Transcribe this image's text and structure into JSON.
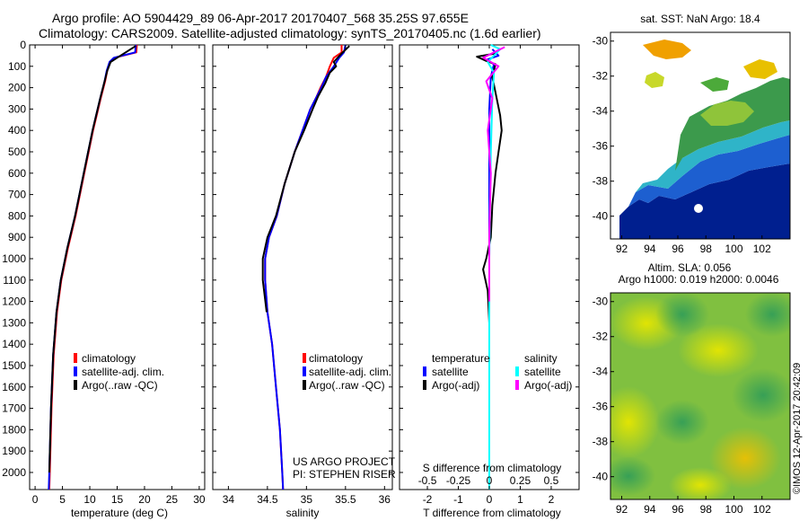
{
  "header": {
    "title_line1": "Argo profile: AO 5904429_89 06-Apr-2017 20170407_568 35.25S 97.655E",
    "title_line2": "Climatology: CARS2009. Satellite-adjusted climatology: synTS_20170405.nc (1.6d earlier)"
  },
  "project": {
    "line1": "US ARGO PROJECT",
    "line2": "PI: STEPHEN RISER"
  },
  "sst_map": {
    "title": "sat. SST: NaN Argo: 18.4"
  },
  "sla_map": {
    "line1": "Altim. SLA: 0.056",
    "line2": "Argo h1000: 0.019 h2000: 0.0046"
  },
  "watermark": "©IMOS 12-Apr-2017 20:42:09",
  "colors": {
    "climatology": "#ff0000",
    "satellite": "#0000ff",
    "argo": "#000000",
    "salinity_satellite": "#00ffff",
    "salinity_argo": "#ff00ff",
    "land": "#ffffff"
  },
  "chart_data": [
    {
      "type": "line",
      "id": "temperature",
      "xlabel": "temperature (deg C)",
      "ylabel": "",
      "xlim": [
        -1,
        31
      ],
      "ylim": [
        2080,
        0
      ],
      "y_reversed": true,
      "xticks": [
        0,
        5,
        10,
        15,
        20,
        25,
        30
      ],
      "yticks": [
        0,
        100,
        200,
        300,
        400,
        500,
        600,
        700,
        800,
        900,
        1000,
        1100,
        1200,
        1300,
        1400,
        1500,
        1600,
        1700,
        1800,
        1900,
        2000
      ],
      "legend": [
        "climatology",
        "satellite-adj. clim.",
        "Argo(..raw -QC)"
      ],
      "legend_placement": "lower-left",
      "series": [
        {
          "name": "climatology",
          "color": "#ff0000",
          "points": [
            [
              18.6,
              0
            ],
            [
              18.5,
              35
            ],
            [
              14.5,
              60
            ],
            [
              13.7,
              80
            ],
            [
              13.2,
              120
            ],
            [
              12.8,
              170
            ],
            [
              12.0,
              250
            ],
            [
              10.6,
              400
            ],
            [
              9.0,
              600
            ],
            [
              7.4,
              800
            ],
            [
              6.0,
              950
            ],
            [
              4.8,
              1100
            ],
            [
              4.0,
              1250
            ],
            [
              3.4,
              1450
            ],
            [
              3.0,
              1700
            ],
            [
              2.7,
              2000
            ],
            [
              2.6,
              2080
            ]
          ]
        },
        {
          "name": "satellite-adj. clim.",
          "color": "#0000ff",
          "points": [
            [
              18.4,
              0
            ],
            [
              18.3,
              35
            ],
            [
              14.4,
              60
            ],
            [
              13.6,
              80
            ],
            [
              13.1,
              120
            ],
            [
              12.7,
              170
            ],
            [
              11.9,
              250
            ],
            [
              10.5,
              400
            ],
            [
              8.9,
              600
            ],
            [
              7.3,
              800
            ],
            [
              5.9,
              950
            ],
            [
              4.7,
              1100
            ],
            [
              3.9,
              1250
            ],
            [
              3.3,
              1450
            ],
            [
              2.9,
              1700
            ],
            [
              2.6,
              2000
            ],
            [
              2.5,
              2080
            ]
          ]
        },
        {
          "name": "Argo(..raw -QC)",
          "color": "#000000",
          "points": [
            [
              18.4,
              5
            ],
            [
              15.0,
              60
            ],
            [
              13.8,
              80
            ],
            [
              13.2,
              120
            ],
            [
              12.7,
              170
            ],
            [
              11.9,
              250
            ],
            [
              10.5,
              400
            ],
            [
              8.9,
              600
            ],
            [
              7.3,
              800
            ],
            [
              5.9,
              950
            ],
            [
              4.7,
              1100
            ],
            [
              3.9,
              1250
            ],
            [
              3.3,
              1450
            ],
            [
              2.9,
              1700
            ],
            [
              2.6,
              2000
            ]
          ]
        }
      ]
    },
    {
      "type": "line",
      "id": "salinity",
      "xlabel": "salinity",
      "ylabel": "",
      "xlim": [
        33.8,
        36.1
      ],
      "ylim": [
        2080,
        0
      ],
      "y_reversed": true,
      "xticks": [
        34,
        34.5,
        35,
        35.5,
        36
      ],
      "xticklabels": [
        "34",
        "34.5",
        "35",
        "35.5",
        "36"
      ],
      "legend": [
        "climatology",
        "satellite-adj. clim.",
        "Argo(..raw -QC)"
      ],
      "legend_placement": "lower-left",
      "series": [
        {
          "name": "climatology",
          "color": "#ff0000",
          "points": [
            [
              35.45,
              0
            ],
            [
              35.45,
              35
            ],
            [
              35.35,
              60
            ],
            [
              35.3,
              100
            ],
            [
              35.25,
              150
            ],
            [
              35.18,
              200
            ],
            [
              35.12,
              250
            ],
            [
              35.05,
              300
            ],
            [
              34.95,
              400
            ],
            [
              34.85,
              500
            ],
            [
              34.72,
              650
            ],
            [
              34.62,
              800
            ],
            [
              34.52,
              900
            ],
            [
              34.47,
              1000
            ],
            [
              34.47,
              1100
            ],
            [
              34.5,
              1250
            ],
            [
              34.56,
              1400
            ],
            [
              34.61,
              1600
            ],
            [
              34.66,
              1800
            ],
            [
              34.69,
              2000
            ],
            [
              34.7,
              2080
            ]
          ]
        },
        {
          "name": "satellite-adj. clim.",
          "color": "#0000ff",
          "points": [
            [
              35.5,
              0
            ],
            [
              35.48,
              35
            ],
            [
              35.42,
              60
            ],
            [
              35.35,
              100
            ],
            [
              35.25,
              150
            ],
            [
              35.19,
              200
            ],
            [
              35.12,
              250
            ],
            [
              35.05,
              300
            ],
            [
              34.95,
              400
            ],
            [
              34.85,
              500
            ],
            [
              34.72,
              650
            ],
            [
              34.62,
              800
            ],
            [
              34.52,
              900
            ],
            [
              34.47,
              1000
            ],
            [
              34.47,
              1100
            ],
            [
              34.5,
              1250
            ],
            [
              34.56,
              1400
            ],
            [
              34.61,
              1600
            ],
            [
              34.66,
              1800
            ],
            [
              34.69,
              2000
            ],
            [
              34.7,
              2080
            ]
          ]
        },
        {
          "name": "Argo(..raw -QC)",
          "color": "#000000",
          "points": [
            [
              35.55,
              5
            ],
            [
              35.45,
              40
            ],
            [
              35.4,
              60
            ],
            [
              35.35,
              80
            ],
            [
              35.38,
              100
            ],
            [
              35.3,
              130
            ],
            [
              35.24,
              180
            ],
            [
              35.15,
              240
            ],
            [
              35.08,
              300
            ],
            [
              34.97,
              400
            ],
            [
              34.85,
              500
            ],
            [
              34.72,
              650
            ],
            [
              34.61,
              800
            ],
            [
              34.5,
              900
            ],
            [
              34.44,
              1000
            ],
            [
              34.44,
              1100
            ],
            [
              34.49,
              1250
            ]
          ]
        }
      ]
    },
    {
      "type": "line",
      "id": "difference",
      "xlabel": "T difference from climatology",
      "top_label": "S difference from climatology",
      "xlim": [
        -2.9,
        2.9
      ],
      "ylim": [
        2080,
        0
      ],
      "y_reversed": true,
      "xticks": [
        -2,
        -1,
        0,
        1,
        2
      ],
      "top_xticks": [
        -0.5,
        -0.25,
        0,
        0.25,
        0.5
      ],
      "top_xticklabels": [
        "-0.5",
        "-0.25",
        "0",
        "0.25",
        "0.5"
      ],
      "legend_groups": [
        {
          "title": "temperature",
          "entries": [
            "satellite",
            "Argo(-adj)"
          ]
        },
        {
          "title": "salinity",
          "entries": [
            "satellite",
            "Argo(-adj)"
          ]
        }
      ],
      "legend_placement": "lower-center",
      "series": [
        {
          "name": "temperature satellite",
          "color": "#0000ff",
          "points": [
            [
              0.1,
              20
            ],
            [
              0.3,
              50
            ],
            [
              -0.1,
              70
            ],
            [
              0.15,
              90
            ],
            [
              0.05,
              150
            ],
            [
              0,
              300
            ],
            [
              0,
              600
            ],
            [
              0,
              1000
            ],
            [
              0,
              1500
            ],
            [
              0,
              2000
            ],
            [
              0,
              2080
            ]
          ]
        },
        {
          "name": "temperature Argo(-adj)",
          "color": "#000000",
          "points": [
            [
              0.2,
              40
            ],
            [
              -0.4,
              55
            ],
            [
              -0.1,
              75
            ],
            [
              0.2,
              90
            ],
            [
              0.1,
              150
            ],
            [
              0.35,
              330
            ],
            [
              0.4,
              400
            ],
            [
              0.3,
              500
            ],
            [
              0.2,
              600
            ],
            [
              0.1,
              750
            ],
            [
              0.05,
              900
            ],
            [
              -0.1,
              1000
            ],
            [
              -0.2,
              1050
            ],
            [
              -0.05,
              1150
            ],
            [
              0.0,
              1300
            ]
          ]
        },
        {
          "name": "salinity satellite",
          "color": "#00ffff",
          "points": [
            [
              0.05,
              0
            ],
            [
              0.35,
              20
            ],
            [
              -0.05,
              80
            ],
            [
              0.15,
              130
            ],
            [
              0.1,
              250
            ],
            [
              0.05,
              500
            ],
            [
              0,
              1000
            ],
            [
              0,
              1500
            ],
            [
              0,
              2000
            ],
            [
              0,
              2080
            ]
          ]
        },
        {
          "name": "salinity Argo(-adj)",
          "color": "#ff00ff",
          "points": [
            [
              0.5,
              10
            ],
            [
              -0.2,
              60
            ],
            [
              0.3,
              100
            ],
            [
              -0.1,
              170
            ],
            [
              0.1,
              250
            ],
            [
              -0.05,
              400
            ],
            [
              0.05,
              600
            ],
            [
              0,
              900
            ],
            [
              0,
              1200
            ]
          ]
        }
      ]
    },
    {
      "type": "heatmap",
      "id": "sst_map",
      "title": "sat. SST: NaN Argo: 18.4",
      "xlim": [
        91.2,
        104
      ],
      "ylim": [
        -41.3,
        -29.5
      ],
      "xticks": [
        92,
        94,
        96,
        98,
        100,
        102
      ],
      "yticks": [
        -30,
        -32,
        -34,
        -36,
        -38,
        -40
      ]
    },
    {
      "type": "heatmap",
      "id": "sla_map",
      "title": "Altim. SLA: 0.056",
      "xlim": [
        91.2,
        104
      ],
      "ylim": [
        -41.3,
        -29.5
      ],
      "xticks": [
        92,
        94,
        96,
        98,
        100,
        102
      ],
      "yticks": [
        -30,
        -32,
        -34,
        -36,
        -38,
        -40
      ]
    }
  ]
}
